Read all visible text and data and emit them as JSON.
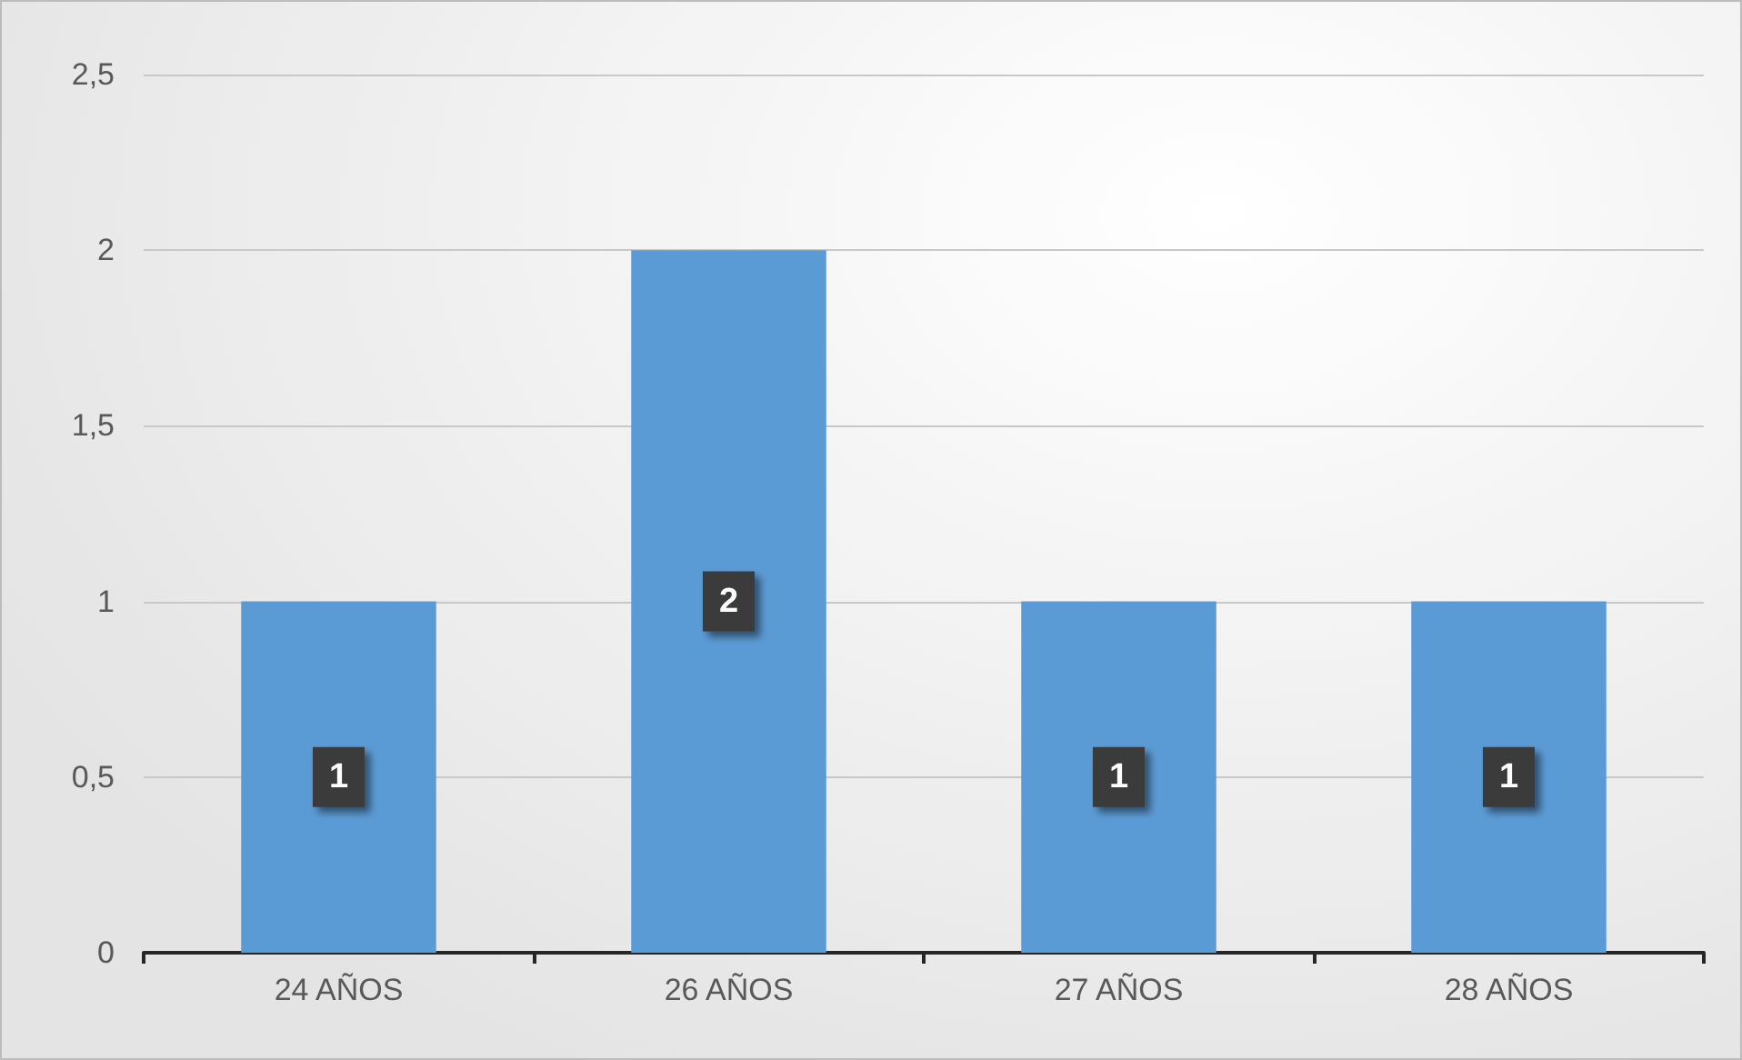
{
  "chart_data": {
    "type": "bar",
    "categories": [
      "24 AÑOS",
      "26 AÑOS",
      "27 AÑOS",
      "28 AÑOS"
    ],
    "values": [
      1,
      2,
      1,
      1
    ],
    "color": "#5b9bd5",
    "data_labels": true,
    "ylim": [
      0,
      2.5
    ],
    "yticks": [
      0,
      {
        "value": 0.5,
        "label": "0,5"
      },
      1,
      {
        "value": 1.5,
        "label": "1,5"
      },
      2,
      {
        "value": 2.5,
        "label": "2,5"
      }
    ],
    "grid": "y"
  }
}
